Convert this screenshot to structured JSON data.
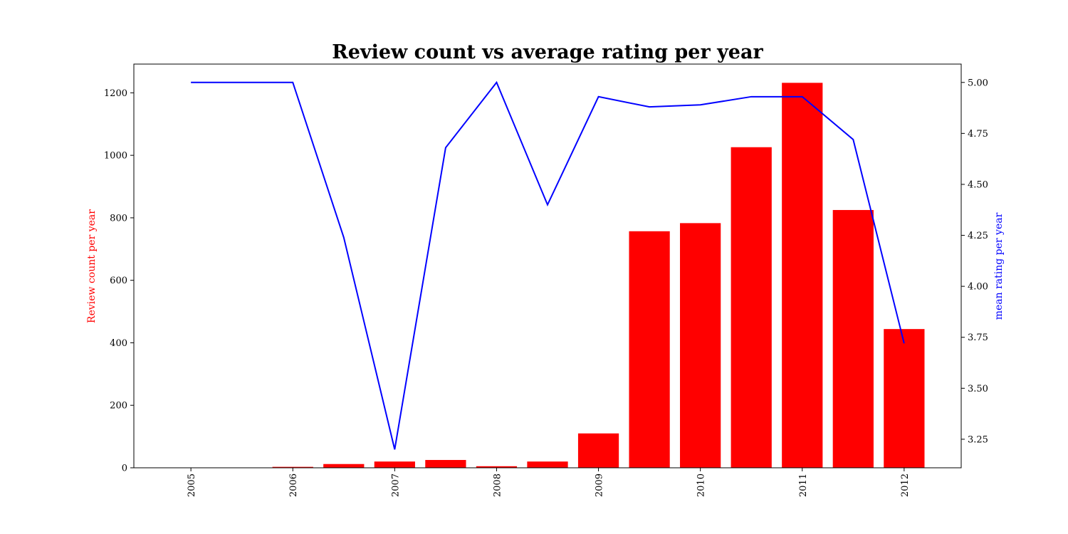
{
  "chart_data": {
    "type": "bar",
    "title": "Review count vs average rating per year",
    "xlabel": "",
    "ylabel": "Review count per year",
    "y2label": "mean rating per year",
    "x_ticks": [
      "2005",
      "2006",
      "2007",
      "2008",
      "2009",
      "2010",
      "2011",
      "2012"
    ],
    "x_tick_positions": [
      2005,
      2006,
      2007,
      2008,
      2009,
      2010,
      2011,
      2012
    ],
    "xlim": [
      2004.44,
      2012.56
    ],
    "x": [
      2005.0,
      2005.5,
      2006.0,
      2006.5,
      2007.0,
      2007.5,
      2008.0,
      2008.5,
      2009.0,
      2009.5,
      2010.0,
      2010.5,
      2011.0,
      2011.5,
      2012.0
    ],
    "ylim": [
      0,
      1292
    ],
    "y_ticks": [
      0,
      200,
      400,
      600,
      800,
      1000,
      1200
    ],
    "y2lim": [
      3.11,
      5.09
    ],
    "y2_ticks": [
      3.25,
      3.5,
      3.75,
      4.0,
      4.25,
      4.5,
      4.75,
      5.0
    ],
    "y2_tick_labels": [
      "3.25",
      "3.50",
      "3.75",
      "4.00",
      "4.25",
      "4.50",
      "4.75",
      "5.00"
    ],
    "series": [
      {
        "name": "Review count per year",
        "type": "bar",
        "color": "#ff0000",
        "values": [
          1,
          1,
          3,
          12,
          20,
          25,
          5,
          20,
          110,
          757,
          783,
          1026,
          1232,
          825,
          444
        ]
      },
      {
        "name": "mean rating per year",
        "type": "line",
        "axis": "right",
        "color": "#0000ff",
        "values": [
          5.0,
          5.0,
          5.0,
          4.24,
          3.2,
          4.68,
          5.0,
          4.4,
          4.93,
          4.88,
          4.89,
          4.93,
          4.93,
          4.72,
          3.72
        ]
      }
    ],
    "legend": "none",
    "grid": false
  }
}
